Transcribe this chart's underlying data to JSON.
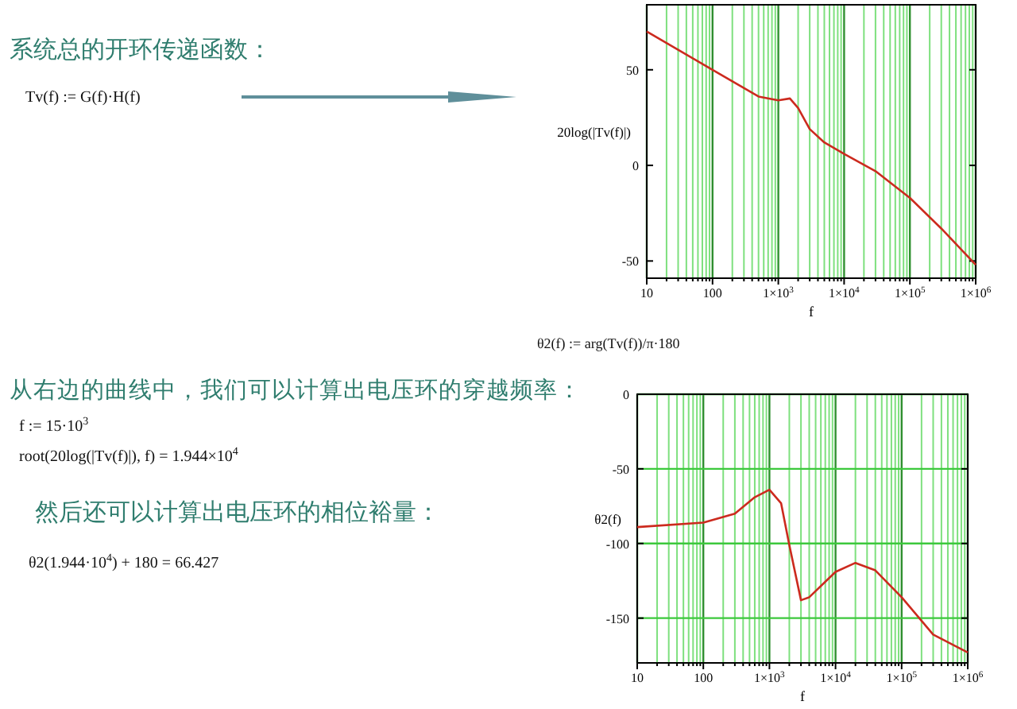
{
  "chart_data": [
    {
      "type": "line",
      "log": "x",
      "grid": "x",
      "ylabel": "20log(|Tv(f)|)",
      "xlabel": "f",
      "x": [
        10,
        100,
        500,
        1000,
        1500,
        2000,
        3000,
        5000,
        10000,
        30000,
        100000,
        300000,
        1000000
      ],
      "series": [
        {
          "color": "#cc2a1e",
          "values": [
            70,
            50,
            36,
            34,
            35,
            30,
            19,
            12,
            6,
            -3,
            -17,
            -33,
            -52
          ]
        }
      ],
      "xlim": [
        10,
        1000000
      ],
      "xticks": [
        {
          "value": 10,
          "label": "10"
        },
        {
          "value": 20,
          "label": null
        },
        {
          "value": 30,
          "label": null
        },
        {
          "value": 40,
          "label": null
        },
        {
          "value": 50,
          "label": null
        },
        {
          "value": 60,
          "label": null
        },
        {
          "value": 70,
          "label": null
        },
        {
          "value": 80,
          "label": null
        },
        {
          "value": 90,
          "label": null
        },
        {
          "value": 100,
          "label": "100"
        },
        {
          "value": 200,
          "label": null
        },
        {
          "value": 300,
          "label": null
        },
        {
          "value": 400,
          "label": null
        },
        {
          "value": 500,
          "label": null
        },
        {
          "value": 600,
          "label": null
        },
        {
          "value": 700,
          "label": null
        },
        {
          "value": 800,
          "label": null
        },
        {
          "value": 900,
          "label": null
        },
        {
          "value": 1000,
          "label": "1×10$^{3}$"
        },
        {
          "value": 2000,
          "label": null
        },
        {
          "value": 3000,
          "label": null
        },
        {
          "value": 4000,
          "label": null
        },
        {
          "value": 5000,
          "label": null
        },
        {
          "value": 6000,
          "label": null
        },
        {
          "value": 7000,
          "label": null
        },
        {
          "value": 8000,
          "label": null
        },
        {
          "value": 9000,
          "label": null
        },
        {
          "value": 10000,
          "label": "1×10$^{4}$"
        },
        {
          "value": 20000,
          "label": null
        },
        {
          "value": 30000,
          "label": null
        },
        {
          "value": 40000,
          "label": null
        },
        {
          "value": 50000,
          "label": null
        },
        {
          "value": 60000,
          "label": null
        },
        {
          "value": 70000,
          "label": null
        },
        {
          "value": 80000,
          "label": null
        },
        {
          "value": 90000,
          "label": null
        },
        {
          "value": 100000,
          "label": "1×10$^{5}$"
        },
        {
          "value": 200000,
          "label": null
        },
        {
          "value": 300000,
          "label": null
        },
        {
          "value": 400000,
          "label": null
        },
        {
          "value": 500000,
          "label": null
        },
        {
          "value": 600000,
          "label": null
        },
        {
          "value": 700000,
          "label": null
        },
        {
          "value": 800000,
          "label": null
        },
        {
          "value": 900000,
          "label": null
        },
        {
          "value": 1000000,
          "label": "1×10$^{6}$"
        }
      ],
      "ylim": [
        -59,
        84
      ],
      "yticks": [
        -50,
        0,
        50
      ],
      "annotations": [
        "系统总的开环传递函数：",
        "Tv(f) := G(f)·H(f)"
      ]
    },
    {
      "type": "line",
      "log": "x",
      "grid": true,
      "ylabel": "θ2(f)",
      "xlabel": "f",
      "x": [
        10,
        100,
        300,
        600,
        1000,
        1500,
        2000,
        3000,
        4000,
        10000,
        20000,
        40000,
        100000,
        300000,
        1000000
      ],
      "series": [
        {
          "color": "#cc2a1e",
          "values": [
            -89,
            -86,
            -80,
            -69,
            -64,
            -73,
            -101,
            -138,
            -136,
            -119,
            -113,
            -118,
            -136,
            -161,
            -173
          ]
        }
      ],
      "xlim": [
        10,
        1000000
      ],
      "xticks": [
        {
          "value": 10,
          "label": "10"
        },
        {
          "value": 20,
          "label": null
        },
        {
          "value": 30,
          "label": null
        },
        {
          "value": 40,
          "label": null
        },
        {
          "value": 50,
          "label": null
        },
        {
          "value": 60,
          "label": null
        },
        {
          "value": 70,
          "label": null
        },
        {
          "value": 80,
          "label": null
        },
        {
          "value": 90,
          "label": null
        },
        {
          "value": 100,
          "label": "100"
        },
        {
          "value": 200,
          "label": null
        },
        {
          "value": 300,
          "label": null
        },
        {
          "value": 400,
          "label": null
        },
        {
          "value": 500,
          "label": null
        },
        {
          "value": 600,
          "label": null
        },
        {
          "value": 700,
          "label": null
        },
        {
          "value": 800,
          "label": null
        },
        {
          "value": 900,
          "label": null
        },
        {
          "value": 1000,
          "label": "1×10$^{3}$"
        },
        {
          "value": 2000,
          "label": null
        },
        {
          "value": 3000,
          "label": null
        },
        {
          "value": 4000,
          "label": null
        },
        {
          "value": 5000,
          "label": null
        },
        {
          "value": 6000,
          "label": null
        },
        {
          "value": 7000,
          "label": null
        },
        {
          "value": 8000,
          "label": null
        },
        {
          "value": 9000,
          "label": null
        },
        {
          "value": 10000,
          "label": "1×10$^{4}$"
        },
        {
          "value": 20000,
          "label": null
        },
        {
          "value": 30000,
          "label": null
        },
        {
          "value": 40000,
          "label": null
        },
        {
          "value": 50000,
          "label": null
        },
        {
          "value": 60000,
          "label": null
        },
        {
          "value": 70000,
          "label": null
        },
        {
          "value": 80000,
          "label": null
        },
        {
          "value": 90000,
          "label": null
        },
        {
          "value": 100000,
          "label": "1×10$^{5}$"
        },
        {
          "value": 200000,
          "label": null
        },
        {
          "value": 300000,
          "label": null
        },
        {
          "value": 400000,
          "label": null
        },
        {
          "value": 500000,
          "label": null
        },
        {
          "value": 600000,
          "label": null
        },
        {
          "value": 700000,
          "label": null
        },
        {
          "value": 800000,
          "label": null
        },
        {
          "value": 900000,
          "label": null
        },
        {
          "value": 1000000,
          "label": "1×10$^{6}$"
        }
      ],
      "ylim": [
        -180,
        0
      ],
      "yticks": [
        -150,
        -100,
        -50,
        0
      ],
      "annotations": [
        "θ2(f) := arg(Tv(f))/π·180",
        "从右边的曲线中，我们可以计算出电压环的穿越频率：",
        "f := 15·10$^{3}$",
        "root(20log(|Tv(f)|), f) = 1.944×10$^{4}$",
        "然后还可以计算出电压环的相位裕量：",
        "θ2(1.944·10$^{4}$) + 180 = 66.427"
      ]
    }
  ]
}
